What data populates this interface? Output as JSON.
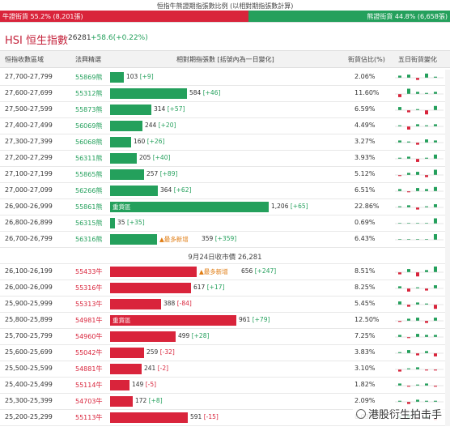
{
  "top": {
    "title": "恒指牛熊證期指張數比例 (以相對期指張數計算)",
    "bull_text": "牛證街貨 55.2% (8,201張)",
    "bear_text": "熊證街貨 44.8% (6,658張)",
    "bull_ratio": 0.552,
    "bear_ratio": 0.448,
    "bull_color": "#d9243b",
    "bear_color": "#24a05c"
  },
  "index": {
    "name": "HSI 恒生指數",
    "price": "26281",
    "change": "+58.6(+0.22%)"
  },
  "headers": {
    "range": "恒指收數區域",
    "code": "法興精選",
    "contracts": "相對期指張數 [括號內為一日變化]",
    "pct": "街貨佔比(%)",
    "five_day": "五日街貨變化"
  },
  "bear_rows": [
    {
      "range": "27,700-27,799",
      "code": "55869熊",
      "value": 103,
      "label": "103",
      "change": "[+9]",
      "tag": "",
      "pct": "2.06%",
      "spark": [
        2,
        3,
        -2,
        4,
        1
      ]
    },
    {
      "range": "27,600-27,699",
      "code": "55312熊",
      "value": 584,
      "label": "584",
      "change": "[+46]",
      "tag": "",
      "pct": "11.60%",
      "spark": [
        -3,
        5,
        2,
        1,
        2
      ]
    },
    {
      "range": "27,500-27,599",
      "code": "55873熊",
      "value": 314,
      "label": "314",
      "change": "[+57]",
      "tag": "",
      "pct": "6.59%",
      "spark": [
        3,
        -2,
        1,
        -4,
        4
      ]
    },
    {
      "range": "27,400-27,499",
      "code": "56069熊",
      "value": 244,
      "label": "244",
      "change": "[+20]",
      "tag": "",
      "pct": "4.49%",
      "spark": [
        1,
        -3,
        2,
        1,
        2
      ]
    },
    {
      "range": "27,300-27,399",
      "code": "56068熊",
      "value": 160,
      "label": "160",
      "change": "[+26]",
      "tag": "",
      "pct": "3.27%",
      "spark": [
        2,
        1,
        -2,
        3,
        2
      ]
    },
    {
      "range": "27,200-27,299",
      "code": "56311熊",
      "value": 205,
      "label": "205",
      "change": "[+40]",
      "tag": "",
      "pct": "3.93%",
      "spark": [
        1,
        2,
        -3,
        1,
        4
      ]
    },
    {
      "range": "27,100-27,199",
      "code": "55865熊",
      "value": 257,
      "label": "257",
      "change": "[+89]",
      "tag": "",
      "pct": "5.12%",
      "spark": [
        -1,
        2,
        3,
        -2,
        5
      ]
    },
    {
      "range": "27,000-27,099",
      "code": "56266熊",
      "value": 364,
      "label": "364",
      "change": "[+62]",
      "tag": "",
      "pct": "6.51%",
      "spark": [
        2,
        -1,
        3,
        2,
        4
      ]
    },
    {
      "range": "26,900-26,999",
      "code": "55861熊",
      "value": 1206,
      "label": "1,206",
      "change": "[+65]",
      "tag": "重貨區",
      "pct": "22.86%",
      "spark": [
        1,
        2,
        -2,
        1,
        3
      ]
    },
    {
      "range": "26,800-26,899",
      "code": "56315熊",
      "value": 35,
      "label": "35",
      "change": "[+35]",
      "tag": "",
      "pct": "0.69%",
      "spark": [
        0,
        0,
        0,
        0,
        5
      ]
    },
    {
      "range": "26,700-26,799",
      "code": "56316熊",
      "value": 359,
      "label": "359",
      "change": "[+359]",
      "tag": "▲最多新增",
      "pct": "6.43%",
      "spark": [
        0,
        0,
        0,
        0,
        7
      ]
    }
  ],
  "closing_text": "9月24日收市價 26,281",
  "bull_rows": [
    {
      "range": "26,100-26,199",
      "code": "55433牛",
      "value": 656,
      "label": "656",
      "change": "[+247]",
      "tag": "▲最多新增",
      "pct": "8.51%",
      "spark": [
        -2,
        3,
        -4,
        2,
        6
      ]
    },
    {
      "range": "26,000-26,099",
      "code": "55316牛",
      "value": 617,
      "label": "617",
      "change": "[+17]",
      "tag": "",
      "pct": "8.25%",
      "spark": [
        2,
        -3,
        1,
        -2,
        3
      ]
    },
    {
      "range": "25,900-25,999",
      "code": "55313牛",
      "value": 388,
      "label": "388",
      "change": "[-84]",
      "tag": "",
      "pct": "5.45%",
      "spark": [
        3,
        -2,
        2,
        1,
        -4
      ]
    },
    {
      "range": "25,800-25,899",
      "code": "54981牛",
      "value": 961,
      "label": "961",
      "change": "[+79]",
      "tag": "重貨區",
      "pct": "12.50%",
      "spark": [
        -1,
        2,
        3,
        -2,
        3
      ]
    },
    {
      "range": "25,700-25,799",
      "code": "54960牛",
      "value": 499,
      "label": "499",
      "change": "[+28]",
      "tag": "",
      "pct": "7.25%",
      "spark": [
        2,
        -1,
        3,
        2,
        2
      ]
    },
    {
      "range": "25,600-25,699",
      "code": "55042牛",
      "value": 259,
      "label": "259",
      "change": "[-32]",
      "tag": "",
      "pct": "3.83%",
      "spark": [
        1,
        3,
        -2,
        2,
        -3
      ]
    },
    {
      "range": "25,500-25,599",
      "code": "54881牛",
      "value": 241,
      "label": "241",
      "change": "[-2]",
      "tag": "",
      "pct": "3.10%",
      "spark": [
        -2,
        1,
        2,
        -1,
        -1
      ]
    },
    {
      "range": "25,400-25,499",
      "code": "55114牛",
      "value": 149,
      "label": "149",
      "change": "[-5]",
      "tag": "",
      "pct": "1.82%",
      "spark": [
        2,
        -1,
        1,
        2,
        -1
      ]
    },
    {
      "range": "25,300-25,399",
      "code": "54703牛",
      "value": 172,
      "label": "172",
      "change": "[+8]",
      "tag": "",
      "pct": "2.09%",
      "spark": [
        1,
        -2,
        2,
        1,
        1
      ]
    },
    {
      "range": "25,200-25,299",
      "code": "55113牛",
      "value": 591,
      "label": "591",
      "change": "[-15]",
      "tag": "",
      "pct": "8.03%",
      "spark": [
        2,
        3,
        -1,
        2,
        -2
      ]
    }
  ],
  "watermark": "港股衍生拍击手"
}
